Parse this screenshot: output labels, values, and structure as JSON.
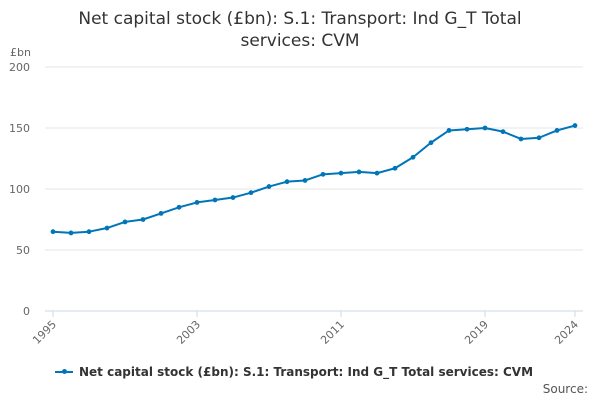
{
  "title_line1": "Net capital stock (£bn): S.1: Transport: Ind G_T Total",
  "title_line2": "services: CVM",
  "source": "Source:",
  "colors": {
    "series": "#0075b8",
    "grid": "#e6e6e6",
    "axis": "#ccd6eb",
    "text": "#666666"
  },
  "chart_data": {
    "type": "line",
    "title": "Net capital stock (£bn): S.1: Transport: Ind G_T Total services: CVM",
    "ylabel": "£bn",
    "xlabel": "",
    "ylim": [
      0,
      200
    ],
    "yticks": [
      0,
      50,
      100,
      150,
      200
    ],
    "xticks": [
      "1995",
      "2003",
      "2011",
      "2019",
      "2024"
    ],
    "grid": true,
    "legend_position": "bottom",
    "series": [
      {
        "name": "Net capital stock (£bn): S.1: Transport: Ind G_T Total services: CVM",
        "x": [
          1995,
          1996,
          1997,
          1998,
          1999,
          2000,
          2001,
          2002,
          2003,
          2004,
          2005,
          2006,
          2007,
          2008,
          2009,
          2010,
          2011,
          2012,
          2013,
          2014,
          2015,
          2016,
          2017,
          2018,
          2019,
          2020,
          2021,
          2022,
          2023,
          2024
        ],
        "values": [
          65,
          64,
          65,
          68,
          73,
          75,
          80,
          85,
          89,
          91,
          93,
          97,
          102,
          106,
          107,
          112,
          113,
          114,
          113,
          117,
          126,
          138,
          148,
          149,
          150,
          147,
          141,
          142,
          148,
          152
        ]
      }
    ]
  }
}
